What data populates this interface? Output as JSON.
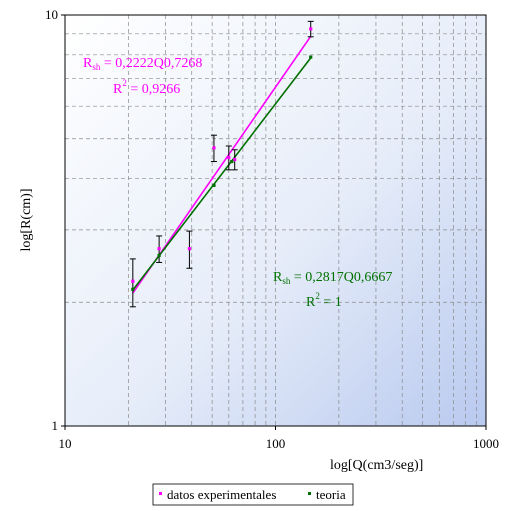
{
  "chart_data": {
    "type": "scatter",
    "title": "",
    "xlabel": "log[Q(cm3/seg)]",
    "ylabel": "log[R(cm)]",
    "xscale": "log",
    "yscale": "log",
    "xlim": [
      10,
      1000
    ],
    "ylim": [
      1,
      10
    ],
    "xticks": [
      "10",
      "100",
      "1000"
    ],
    "yticks": [
      "1",
      "10"
    ],
    "grid": true,
    "plot_background": "gradient-blue",
    "series": [
      {
        "name": "datos experimentales",
        "color": "#ff00ff",
        "x": [
          21,
          28,
          39,
          51,
          60,
          64,
          147
        ],
        "y": [
          2.25,
          2.7,
          2.7,
          4.75,
          4.5,
          4.45,
          9.25
        ],
        "yerr_low": [
          0.3,
          0.2,
          0.28,
          0.35,
          0.3,
          0.25,
          0.4
        ],
        "yerr_high": [
          0.3,
          0.2,
          0.28,
          0.35,
          0.3,
          0.25,
          0.4
        ],
        "trendline": {
          "x": [
            21,
            147
          ],
          "equation_label": "R",
          "equation_sub": "sh",
          "equation_text": " = 0,2222Q0,7268",
          "r2_label": "R",
          "r2_sup": "2",
          "r2_text": " = 0,9266"
        }
      },
      {
        "name": "teoria",
        "color": "#007000",
        "x": [
          21,
          28,
          51,
          62,
          147
        ],
        "y": [
          2.15,
          2.6,
          3.85,
          4.4,
          7.9
        ],
        "trendline": {
          "x": [
            21,
            147
          ],
          "equation_label": "R",
          "equation_sub": "sh",
          "equation_text": " = 0,2817Q0,6667",
          "r2_label": "R",
          "r2_sup": "2",
          "r2_text": " = 1"
        }
      }
    ],
    "legend": {
      "placement": "bottom-center"
    }
  }
}
